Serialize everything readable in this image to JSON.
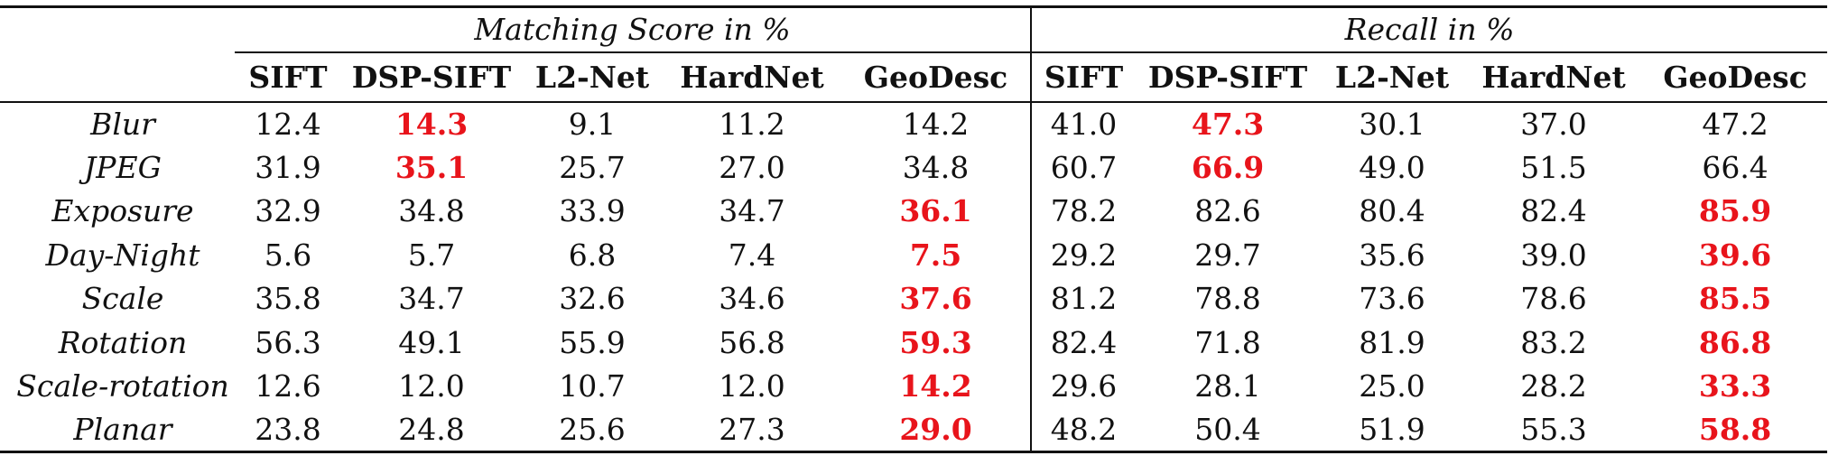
{
  "table": {
    "group_headers": [
      "Matching Score in %",
      "Recall in %"
    ],
    "methods": [
      "SIFT",
      "DSP-SIFT",
      "L2-Net",
      "HardNet",
      "GeoDesc"
    ],
    "highlight_color": "#e8141b",
    "rows": [
      {
        "label": "Blur",
        "matching": [
          "12.4",
          "14.3",
          "9.1",
          "11.2",
          "14.2"
        ],
        "matching_best": 1,
        "recall": [
          "41.0",
          "47.3",
          "30.1",
          "37.0",
          "47.2"
        ],
        "recall_best": 1
      },
      {
        "label": "JPEG",
        "matching": [
          "31.9",
          "35.1",
          "25.7",
          "27.0",
          "34.8"
        ],
        "matching_best": 1,
        "recall": [
          "60.7",
          "66.9",
          "49.0",
          "51.5",
          "66.4"
        ],
        "recall_best": 1
      },
      {
        "label": "Exposure",
        "matching": [
          "32.9",
          "34.8",
          "33.9",
          "34.7",
          "36.1"
        ],
        "matching_best": 4,
        "recall": [
          "78.2",
          "82.6",
          "80.4",
          "82.4",
          "85.9"
        ],
        "recall_best": 4
      },
      {
        "label": "Day-Night",
        "matching": [
          "5.6",
          "5.7",
          "6.8",
          "7.4",
          "7.5"
        ],
        "matching_best": 4,
        "recall": [
          "29.2",
          "29.7",
          "35.6",
          "39.0",
          "39.6"
        ],
        "recall_best": 4
      },
      {
        "label": "Scale",
        "matching": [
          "35.8",
          "34.7",
          "32.6",
          "34.6",
          "37.6"
        ],
        "matching_best": 4,
        "recall": [
          "81.2",
          "78.8",
          "73.6",
          "78.6",
          "85.5"
        ],
        "recall_best": 4
      },
      {
        "label": "Rotation",
        "matching": [
          "56.3",
          "49.1",
          "55.9",
          "56.8",
          "59.3"
        ],
        "matching_best": 4,
        "recall": [
          "82.4",
          "71.8",
          "81.9",
          "83.2",
          "86.8"
        ],
        "recall_best": 4
      },
      {
        "label": "Scale-rotation",
        "matching": [
          "12.6",
          "12.0",
          "10.7",
          "12.0",
          "14.2"
        ],
        "matching_best": 4,
        "recall": [
          "29.6",
          "28.1",
          "25.0",
          "28.2",
          "33.3"
        ],
        "recall_best": 4
      },
      {
        "label": "Planar",
        "matching": [
          "23.8",
          "24.8",
          "25.6",
          "27.3",
          "29.0"
        ],
        "matching_best": 4,
        "recall": [
          "48.2",
          "50.4",
          "51.9",
          "55.3",
          "58.8"
        ],
        "recall_best": 4
      }
    ]
  }
}
